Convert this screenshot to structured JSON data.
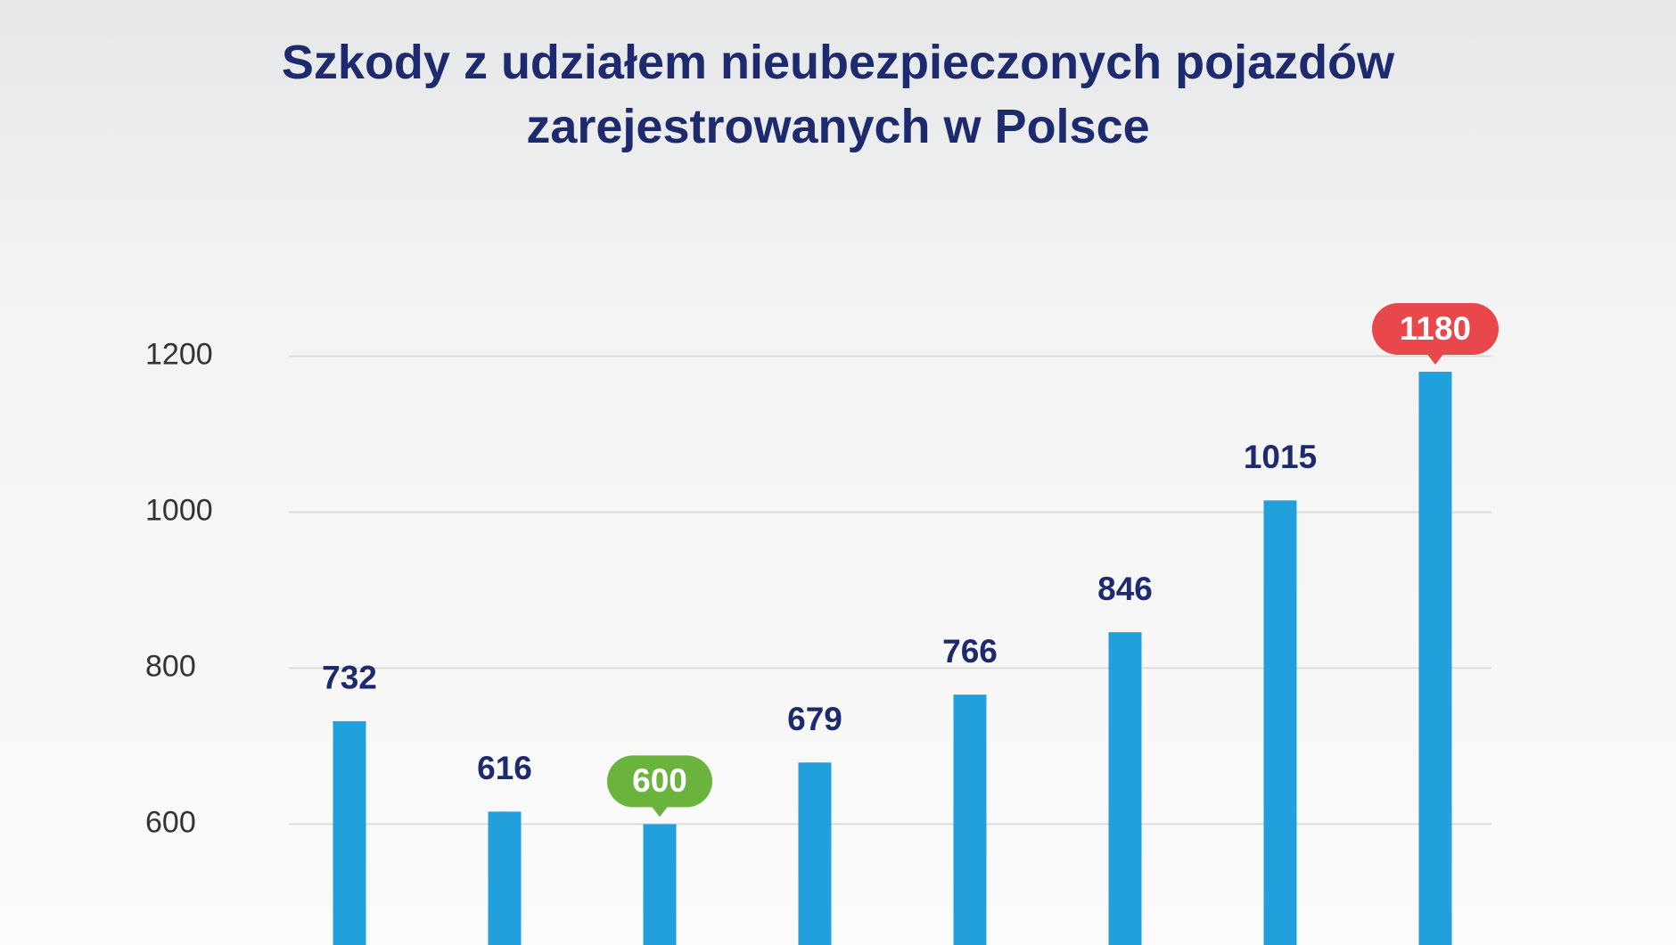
{
  "chart_data": {
    "type": "bar",
    "title": "Szkody z udziałem nieubezpieczonych pojazdów zarejestrowanych w Polsce",
    "categories": [
      null,
      null,
      null,
      null,
      null,
      null,
      null,
      null
    ],
    "values": [
      732,
      616,
      600,
      679,
      766,
      846,
      1015,
      1180
    ],
    "color": "#21a0db",
    "value_label_color": "#1d2a6e",
    "highlight": {
      "min": "#6ab43e",
      "max": "#e8474c"
    },
    "ylim": [
      445,
      1300
    ],
    "yticks": [
      600,
      800,
      1000,
      1200
    ],
    "grid": true
  }
}
